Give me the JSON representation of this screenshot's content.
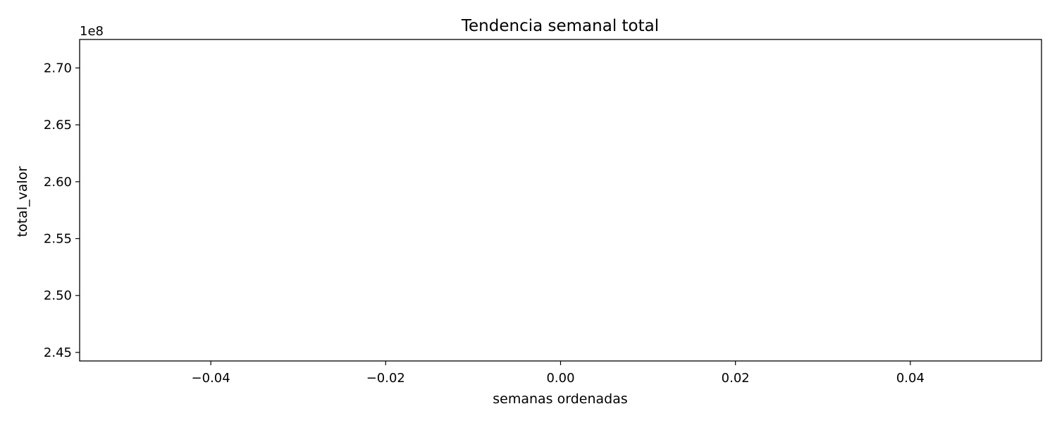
{
  "chart_data": {
    "type": "line",
    "title": "Tendencia semanal total",
    "xlabel": "semanas ordenadas",
    "ylabel": "total_valor",
    "y_offset_label": "1e8",
    "xlim": [
      -0.055,
      0.055
    ],
    "ylim": [
      244250000,
      272500000
    ],
    "x_ticks": [
      -0.04,
      -0.02,
      0.0,
      0.02,
      0.04
    ],
    "x_tick_labels": [
      "−0.04",
      "−0.02",
      "0.00",
      "0.02",
      "0.04"
    ],
    "y_ticks": [
      245000000,
      250000000,
      255000000,
      260000000,
      265000000,
      270000000
    ],
    "y_tick_labels": [
      "2.45",
      "2.50",
      "2.55",
      "2.60",
      "2.65",
      "2.70"
    ],
    "grid": false,
    "series": [
      {
        "x": [],
        "y": []
      }
    ]
  }
}
